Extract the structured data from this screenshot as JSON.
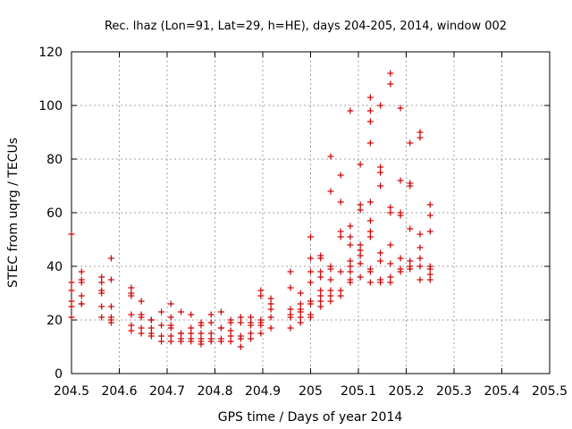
{
  "chart_data": {
    "type": "scatter",
    "title": "Rec. lhaz (Lon=91, Lat=29, h=HE), days 204-205, 2014, window 002",
    "xlabel": "GPS time / Days of year 2014",
    "ylabel": "STEC from uqrg / TECUs",
    "xlim": [
      204.5,
      205.5
    ],
    "ylim": [
      0,
      120
    ],
    "x_ticks": [
      204.5,
      204.6,
      204.7,
      204.8,
      204.9,
      205,
      205.1,
      205.2,
      205.3,
      205.4,
      205.5
    ],
    "x_tick_labels": [
      "204.5",
      "204.6",
      "204.7",
      "204.8",
      "204.9",
      "205",
      "205.1",
      "205.2",
      "205.3",
      "205.4",
      "205.5"
    ],
    "y_ticks": [
      0,
      20,
      40,
      60,
      80,
      100,
      120
    ],
    "y_tick_labels": [
      "0",
      "20",
      "40",
      "60",
      "80",
      "100",
      "120"
    ],
    "grid": true,
    "marker": "+",
    "color": "#cc0000",
    "series": [
      {
        "points": [
          [
            204.5,
            52
          ],
          [
            204.5,
            34
          ],
          [
            204.5,
            31
          ],
          [
            204.5,
            27
          ],
          [
            204.5,
            25
          ],
          [
            204.5,
            21
          ],
          [
            204.521,
            38
          ],
          [
            204.521,
            35
          ],
          [
            204.521,
            34
          ],
          [
            204.521,
            29
          ],
          [
            204.521,
            26
          ],
          [
            204.521,
            26
          ],
          [
            204.563,
            36
          ],
          [
            204.563,
            34
          ],
          [
            204.563,
            31
          ],
          [
            204.563,
            30
          ],
          [
            204.563,
            25
          ],
          [
            204.563,
            21
          ],
          [
            204.583,
            43
          ],
          [
            204.583,
            35
          ],
          [
            204.583,
            25
          ],
          [
            204.583,
            21
          ],
          [
            204.583,
            20
          ],
          [
            204.583,
            19
          ],
          [
            204.625,
            32
          ],
          [
            204.625,
            30
          ],
          [
            204.625,
            29
          ],
          [
            204.625,
            22
          ],
          [
            204.625,
            18
          ],
          [
            204.625,
            16
          ],
          [
            204.646,
            27
          ],
          [
            204.646,
            22
          ],
          [
            204.646,
            21
          ],
          [
            204.646,
            17
          ],
          [
            204.646,
            15
          ],
          [
            204.667,
            20
          ],
          [
            204.667,
            20
          ],
          [
            204.667,
            17
          ],
          [
            204.667,
            15
          ],
          [
            204.667,
            14
          ],
          [
            204.688,
            23
          ],
          [
            204.688,
            18
          ],
          [
            204.688,
            14
          ],
          [
            204.688,
            12
          ],
          [
            204.708,
            26
          ],
          [
            204.708,
            21
          ],
          [
            204.708,
            18
          ],
          [
            204.708,
            17
          ],
          [
            204.708,
            14
          ],
          [
            204.708,
            12
          ],
          [
            204.729,
            23
          ],
          [
            204.729,
            15
          ],
          [
            204.729,
            15
          ],
          [
            204.729,
            13
          ],
          [
            204.729,
            12
          ],
          [
            204.75,
            22
          ],
          [
            204.75,
            17
          ],
          [
            204.75,
            15
          ],
          [
            204.75,
            13
          ],
          [
            204.75,
            12
          ],
          [
            204.771,
            19
          ],
          [
            204.771,
            18
          ],
          [
            204.771,
            15
          ],
          [
            204.771,
            13
          ],
          [
            204.771,
            12
          ],
          [
            204.771,
            11
          ],
          [
            204.792,
            22
          ],
          [
            204.792,
            19
          ],
          [
            204.792,
            15
          ],
          [
            204.792,
            13
          ],
          [
            204.792,
            12
          ],
          [
            204.813,
            23
          ],
          [
            204.813,
            17
          ],
          [
            204.813,
            17
          ],
          [
            204.813,
            13
          ],
          [
            204.813,
            12
          ],
          [
            204.833,
            20
          ],
          [
            204.833,
            19
          ],
          [
            204.833,
            16
          ],
          [
            204.833,
            14
          ],
          [
            204.833,
            12
          ],
          [
            204.854,
            21
          ],
          [
            204.854,
            19
          ],
          [
            204.854,
            14
          ],
          [
            204.854,
            13
          ],
          [
            204.854,
            10
          ],
          [
            204.875,
            21
          ],
          [
            204.875,
            19
          ],
          [
            204.875,
            18
          ],
          [
            204.875,
            15
          ],
          [
            204.875,
            13
          ],
          [
            204.896,
            31
          ],
          [
            204.896,
            29
          ],
          [
            204.896,
            20
          ],
          [
            204.896,
            19
          ],
          [
            204.896,
            18
          ],
          [
            204.896,
            15
          ],
          [
            204.917,
            28
          ],
          [
            204.917,
            26
          ],
          [
            204.917,
            24
          ],
          [
            204.917,
            21
          ],
          [
            204.917,
            17
          ],
          [
            204.958,
            38
          ],
          [
            204.958,
            32
          ],
          [
            204.958,
            24
          ],
          [
            204.958,
            22
          ],
          [
            204.958,
            21
          ],
          [
            204.958,
            17
          ],
          [
            204.979,
            30
          ],
          [
            204.979,
            26
          ],
          [
            204.979,
            24
          ],
          [
            204.979,
            23
          ],
          [
            204.979,
            21
          ],
          [
            204.979,
            19
          ],
          [
            205.0,
            51
          ],
          [
            205.0,
            43
          ],
          [
            205.0,
            38
          ],
          [
            205.0,
            34
          ],
          [
            205.0,
            27
          ],
          [
            205.0,
            26
          ],
          [
            205.0,
            22
          ],
          [
            205.0,
            21
          ],
          [
            205.021,
            44
          ],
          [
            205.021,
            43
          ],
          [
            205.021,
            38
          ],
          [
            205.021,
            36
          ],
          [
            205.021,
            31
          ],
          [
            205.021,
            29
          ],
          [
            205.021,
            27
          ],
          [
            205.021,
            25
          ],
          [
            205.042,
            81
          ],
          [
            205.042,
            68
          ],
          [
            205.042,
            40
          ],
          [
            205.042,
            39
          ],
          [
            205.042,
            35
          ],
          [
            205.042,
            31
          ],
          [
            205.042,
            29
          ],
          [
            205.042,
            27
          ],
          [
            205.063,
            74
          ],
          [
            205.063,
            64
          ],
          [
            205.063,
            53
          ],
          [
            205.063,
            51
          ],
          [
            205.063,
            38
          ],
          [
            205.063,
            31
          ],
          [
            205.063,
            29
          ],
          [
            205.083,
            98
          ],
          [
            205.083,
            55
          ],
          [
            205.083,
            51
          ],
          [
            205.083,
            48
          ],
          [
            205.083,
            42
          ],
          [
            205.083,
            40
          ],
          [
            205.083,
            38
          ],
          [
            205.083,
            35
          ],
          [
            205.083,
            34
          ],
          [
            205.104,
            78
          ],
          [
            205.104,
            63
          ],
          [
            205.104,
            61
          ],
          [
            205.104,
            48
          ],
          [
            205.104,
            46
          ],
          [
            205.104,
            44
          ],
          [
            205.104,
            41
          ],
          [
            205.104,
            36
          ],
          [
            205.125,
            103
          ],
          [
            205.125,
            98
          ],
          [
            205.125,
            94
          ],
          [
            205.125,
            86
          ],
          [
            205.125,
            64
          ],
          [
            205.125,
            57
          ],
          [
            205.125,
            53
          ],
          [
            205.125,
            51
          ],
          [
            205.125,
            39
          ],
          [
            205.125,
            38
          ],
          [
            205.125,
            34
          ],
          [
            205.146,
            100
          ],
          [
            205.146,
            77
          ],
          [
            205.146,
            75
          ],
          [
            205.146,
            70
          ],
          [
            205.146,
            45
          ],
          [
            205.146,
            42
          ],
          [
            205.146,
            35
          ],
          [
            205.146,
            34
          ],
          [
            205.167,
            112
          ],
          [
            205.167,
            108
          ],
          [
            205.167,
            62
          ],
          [
            205.167,
            60
          ],
          [
            205.167,
            48
          ],
          [
            205.167,
            41
          ],
          [
            205.167,
            36
          ],
          [
            205.167,
            34
          ],
          [
            205.188,
            99
          ],
          [
            205.188,
            72
          ],
          [
            205.188,
            60
          ],
          [
            205.188,
            59
          ],
          [
            205.188,
            43
          ],
          [
            205.188,
            39
          ],
          [
            205.188,
            38
          ],
          [
            205.208,
            86
          ],
          [
            205.208,
            71
          ],
          [
            205.208,
            70
          ],
          [
            205.208,
            54
          ],
          [
            205.208,
            42
          ],
          [
            205.208,
            40
          ],
          [
            205.208,
            39
          ],
          [
            205.229,
            90
          ],
          [
            205.229,
            88
          ],
          [
            205.229,
            52
          ],
          [
            205.229,
            47
          ],
          [
            205.229,
            43
          ],
          [
            205.229,
            40
          ],
          [
            205.229,
            35
          ],
          [
            205.25,
            63
          ],
          [
            205.25,
            59
          ],
          [
            205.25,
            53
          ],
          [
            205.25,
            40
          ],
          [
            205.25,
            39
          ],
          [
            205.25,
            37
          ],
          [
            205.25,
            35
          ]
        ]
      }
    ]
  }
}
